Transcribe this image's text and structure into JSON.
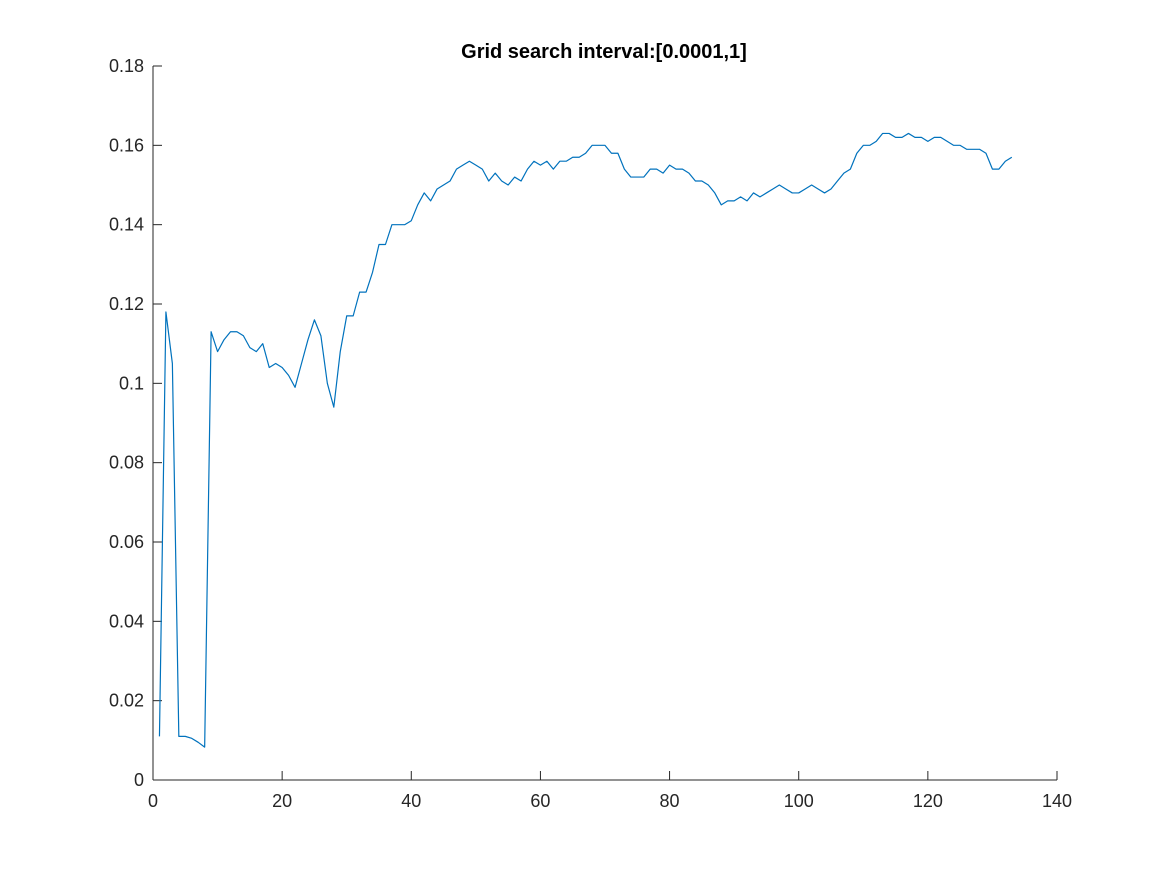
{
  "chart_data": {
    "type": "line",
    "title": "Grid search interval:[0.0001,1]",
    "xlabel": "",
    "ylabel": "",
    "xlim": [
      0,
      140
    ],
    "ylim": [
      0,
      0.18
    ],
    "xticks": [
      0,
      20,
      40,
      60,
      80,
      100,
      120,
      140
    ],
    "xtick_labels": [
      "0",
      "20",
      "40",
      "60",
      "80",
      "100",
      "120",
      "140"
    ],
    "yticks": [
      0,
      0.02,
      0.04,
      0.06,
      0.08,
      0.1,
      0.12,
      0.14,
      0.16,
      0.18
    ],
    "ytick_labels": [
      "0",
      "0.02",
      "0.04",
      "0.06",
      "0.08",
      "0.1",
      "0.12",
      "0.14",
      "0.16",
      "0.18"
    ],
    "grid": false,
    "series_color": "#0072BD",
    "series": [
      {
        "x": [
          1,
          2,
          3,
          4,
          5,
          6,
          7,
          8,
          9,
          10,
          11,
          12,
          13,
          14,
          15,
          16,
          17,
          18,
          19,
          20,
          21,
          22,
          23,
          24,
          25,
          26,
          27,
          28,
          29,
          30,
          31,
          32,
          33,
          34,
          35,
          36,
          37,
          38,
          39,
          40,
          41,
          42,
          43,
          44,
          45,
          46,
          47,
          48,
          49,
          50,
          51,
          52,
          53,
          54,
          55,
          56,
          57,
          58,
          59,
          60,
          61,
          62,
          63,
          64,
          65,
          66,
          67,
          68,
          69,
          70,
          71,
          72,
          73,
          74,
          75,
          76,
          77,
          78,
          79,
          80,
          81,
          82,
          83,
          84,
          85,
          86,
          87,
          88,
          89,
          90,
          91,
          92,
          93,
          94,
          95,
          96,
          97,
          98,
          99,
          100,
          101,
          102,
          103,
          104,
          105,
          106,
          107,
          108,
          109,
          110,
          111,
          112,
          113,
          114,
          115,
          116,
          117,
          118,
          119,
          120,
          121,
          122,
          123,
          124,
          125,
          126,
          127,
          128,
          129,
          130,
          131,
          132,
          133
        ],
        "values": [
          0.011,
          0.118,
          0.105,
          0.011,
          0.011,
          0.0105,
          0.0095,
          0.0083,
          0.113,
          0.108,
          0.111,
          0.113,
          0.113,
          0.112,
          0.109,
          0.108,
          0.11,
          0.104,
          0.105,
          0.104,
          0.102,
          0.099,
          0.105,
          0.111,
          0.116,
          0.112,
          0.1,
          0.094,
          0.108,
          0.117,
          0.117,
          0.123,
          0.123,
          0.128,
          0.135,
          0.135,
          0.14,
          0.14,
          0.14,
          0.141,
          0.145,
          0.148,
          0.146,
          0.149,
          0.15,
          0.151,
          0.154,
          0.155,
          0.156,
          0.155,
          0.154,
          0.151,
          0.153,
          0.151,
          0.15,
          0.152,
          0.151,
          0.154,
          0.156,
          0.155,
          0.156,
          0.154,
          0.156,
          0.156,
          0.157,
          0.157,
          0.158,
          0.16,
          0.16,
          0.16,
          0.158,
          0.158,
          0.154,
          0.152,
          0.152,
          0.152,
          0.154,
          0.154,
          0.153,
          0.155,
          0.154,
          0.154,
          0.153,
          0.151,
          0.151,
          0.15,
          0.148,
          0.145,
          0.146,
          0.146,
          0.147,
          0.146,
          0.148,
          0.147,
          0.148,
          0.149,
          0.15,
          0.149,
          0.148,
          0.148,
          0.149,
          0.15,
          0.149,
          0.148,
          0.149,
          0.151,
          0.153,
          0.154,
          0.158,
          0.16,
          0.16,
          0.161,
          0.163,
          0.163,
          0.162,
          0.162,
          0.163,
          0.162,
          0.162,
          0.161,
          0.162,
          0.162,
          0.161,
          0.16,
          0.16,
          0.159,
          0.159,
          0.159,
          0.158,
          0.154,
          0.154,
          0.156,
          0.157
        ]
      }
    ]
  }
}
